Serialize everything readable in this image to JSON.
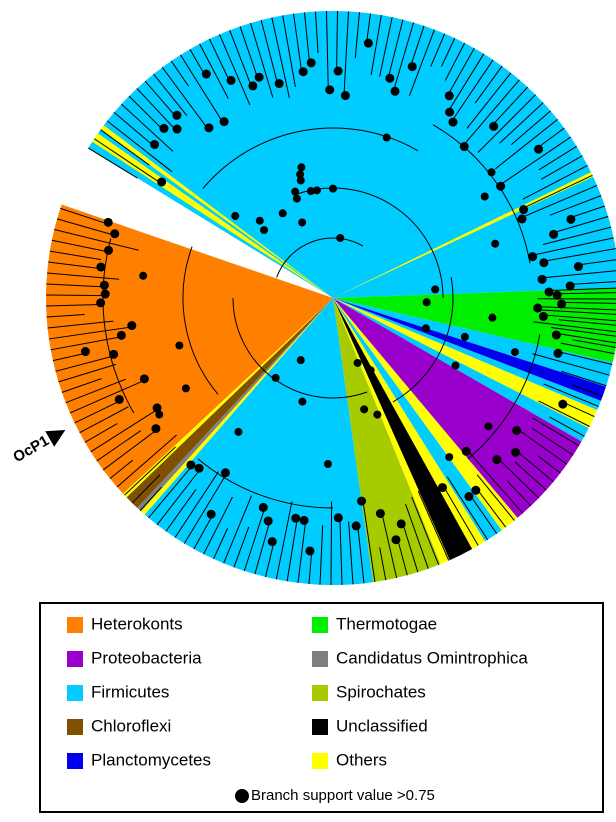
{
  "tree": {
    "label": "OcP1"
  },
  "legend": {
    "items": [
      {
        "label": "Heterokonts",
        "color": "#ff8000"
      },
      {
        "label": "Thermotogae",
        "color": "#00ee00"
      },
      {
        "label": "Proteobacteria",
        "color": "#9900cc"
      },
      {
        "label": "Candidatus Omintrophica",
        "color": "#808080"
      },
      {
        "label": "Firmicutes",
        "color": "#00ccff"
      },
      {
        "label": "Spirochates",
        "color": "#a6cc00"
      },
      {
        "label": "Chloroflexi",
        "color": "#7f5000"
      },
      {
        "label": "Unclassified",
        "color": "#000000"
      },
      {
        "label": "Planctomycetes",
        "color": "#0000ee"
      },
      {
        "label": "Others",
        "color": "#ffff00"
      }
    ],
    "note": "Branch support value >0.75"
  }
}
